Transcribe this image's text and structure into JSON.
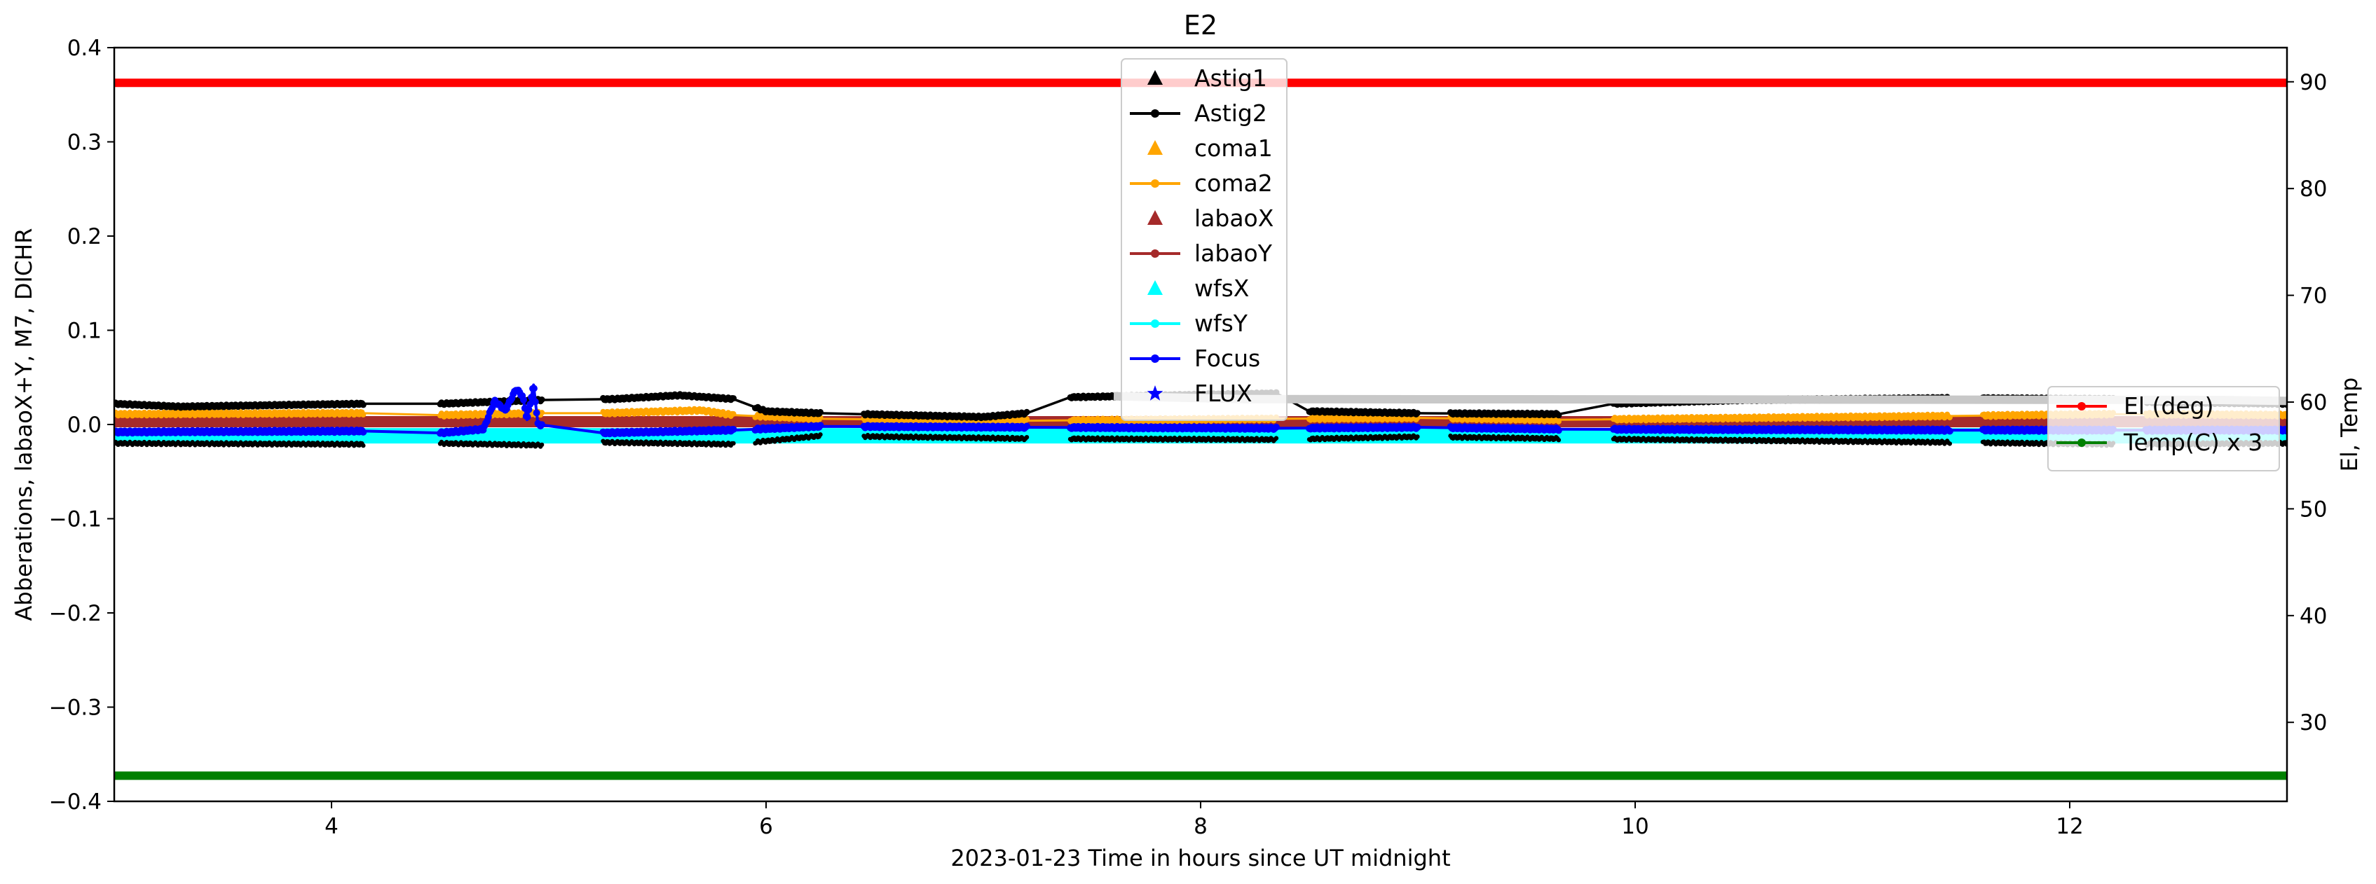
{
  "chart_data": {
    "type": "line",
    "title": "E2",
    "xlabel": "2023-01-23  Time in hours since UT midnight",
    "ylabel": "Abberations, labaoX+Y, M7, DICHR",
    "y2label": "El, Temp",
    "xlim": [
      3,
      13
    ],
    "ylim": [
      -0.4,
      0.4
    ],
    "y2lim": [
      22.6,
      93.2
    ],
    "x_ticks": [
      4,
      6,
      8,
      10,
      12
    ],
    "y_ticks": [
      -0.4,
      -0.3,
      -0.2,
      -0.1,
      0.0,
      0.1,
      0.2,
      0.3,
      0.4
    ],
    "y_tick_labels": [
      "−0.4",
      "−0.3",
      "−0.2",
      "−0.1",
      "0.0",
      "0.1",
      "0.2",
      "0.3",
      "0.4"
    ],
    "y2_ticks": [
      30,
      40,
      50,
      60,
      70,
      80,
      90
    ],
    "grid": false,
    "legend_left": {
      "placement": "top-center",
      "entries": [
        {
          "label": "Astig1",
          "color": "#000000",
          "marker": "triangle",
          "line": false
        },
        {
          "label": "Astig2",
          "color": "#000000",
          "marker": "dot",
          "line": true
        },
        {
          "label": "coma1",
          "color": "#ffa500",
          "marker": "triangle",
          "line": false
        },
        {
          "label": "coma2",
          "color": "#ffa500",
          "marker": "dot",
          "line": true
        },
        {
          "label": "labaoX",
          "color": "#a52a2a",
          "marker": "triangle",
          "line": false
        },
        {
          "label": "labaoY",
          "color": "#a52a2a",
          "marker": "dot",
          "line": true
        },
        {
          "label": "wfsX",
          "color": "#00ffff",
          "marker": "triangle",
          "line": false
        },
        {
          "label": "wfsY",
          "color": "#00ffff",
          "marker": "dot",
          "line": true
        },
        {
          "label": "Focus",
          "color": "#0000ff",
          "marker": "dot",
          "line": true
        },
        {
          "label": "FLUX",
          "color": "#0000ff",
          "marker": "star",
          "line": false
        }
      ]
    },
    "legend_right": {
      "placement": "center-right",
      "entries": [
        {
          "label": "El (deg)",
          "color": "#ff0000",
          "marker": "dot",
          "line": true
        },
        {
          "label": "Temp(C) x 3",
          "color": "#008000",
          "marker": "dot",
          "line": true
        }
      ]
    },
    "segments": [
      [
        3.0,
        4.15
      ],
      [
        4.5,
        4.97
      ],
      [
        5.25,
        5.85
      ],
      [
        5.95,
        6.25
      ],
      [
        6.45,
        7.2
      ],
      [
        7.4,
        8.35
      ],
      [
        8.5,
        9.0
      ],
      [
        9.15,
        9.65
      ],
      [
        9.9,
        11.45
      ],
      [
        11.6,
        12.2
      ],
      [
        12.35,
        13.0
      ]
    ],
    "series": [
      {
        "name": "El (deg)",
        "axis": "right",
        "color": "#ff0000",
        "x": [
          3.0,
          13.0
        ],
        "y": [
          89.9,
          89.9
        ]
      },
      {
        "name": "Temp(C) x 3",
        "axis": "right",
        "color": "#008000",
        "x": [
          3.0,
          13.0
        ],
        "y": [
          25.0,
          25.0
        ]
      },
      {
        "name": "Astig2",
        "color": "#000000",
        "x": [
          3.0,
          3.3,
          4.15,
          4.5,
          4.97,
          5.3,
          5.6,
          5.85,
          6.0,
          6.25,
          7.0,
          7.2,
          7.4,
          8.35,
          8.5,
          9.0,
          9.65,
          9.9,
          10.5,
          11.45,
          12.2,
          12.35,
          13.0
        ],
        "y": [
          0.022,
          0.019,
          0.022,
          0.022,
          0.026,
          0.027,
          0.031,
          0.027,
          0.014,
          0.012,
          0.008,
          0.012,
          0.029,
          0.033,
          0.014,
          0.012,
          0.011,
          0.022,
          0.026,
          0.028,
          0.027,
          0.024,
          0.022
        ]
      },
      {
        "name": "Astig1",
        "color": "#000000",
        "x": [
          3.0,
          4.15,
          4.5,
          4.97,
          5.25,
          5.85,
          6.25,
          7.2,
          8.35,
          9.0,
          9.65,
          11.45,
          12.2,
          13.0
        ],
        "y": [
          -0.02,
          -0.021,
          -0.02,
          -0.022,
          -0.019,
          -0.021,
          -0.012,
          -0.015,
          -0.016,
          -0.013,
          -0.015,
          -0.019,
          -0.021,
          -0.02
        ]
      },
      {
        "name": "coma2",
        "color": "#ffa500",
        "x": [
          3.0,
          4.15,
          4.5,
          4.97,
          5.25,
          5.7,
          5.85,
          6.25,
          7.2,
          8.35,
          9.0,
          9.65,
          11.45,
          12.2,
          13.0
        ],
        "y": [
          0.011,
          0.012,
          0.01,
          0.012,
          0.012,
          0.015,
          0.01,
          0.006,
          0.004,
          0.006,
          0.007,
          0.005,
          0.009,
          0.011,
          0.01
        ]
      },
      {
        "name": "labaoY",
        "color": "#a52a2a",
        "x": [
          3.0,
          13.0
        ],
        "y": [
          0.003,
          0.003
        ]
      },
      {
        "name": "wfsY",
        "color": "#00ffff",
        "x": [
          3.0,
          13.0
        ],
        "y": [
          -0.012,
          -0.012
        ]
      },
      {
        "name": "Focus",
        "color": "#0000ff",
        "x": [
          3.0,
          4.15,
          4.5,
          4.7,
          4.75,
          4.8,
          4.85,
          4.88,
          4.9,
          4.93,
          4.95,
          5.25,
          5.85,
          6.25,
          7.2,
          8.35,
          9.0,
          9.65,
          11.45,
          12.2,
          13.0
        ],
        "y": [
          -0.008,
          -0.007,
          -0.009,
          -0.005,
          0.025,
          0.015,
          0.038,
          0.03,
          0.005,
          0.042,
          0.0,
          -0.009,
          -0.006,
          -0.002,
          -0.003,
          -0.004,
          -0.003,
          -0.005,
          -0.006,
          -0.006,
          -0.006
        ]
      },
      {
        "name": "FLUX",
        "color": "#c8c8c8",
        "x": [
          7.6,
          8.2,
          12.7,
          13.0
        ],
        "y": [
          0.03,
          0.027,
          0.026,
          0.025
        ]
      }
    ]
  }
}
